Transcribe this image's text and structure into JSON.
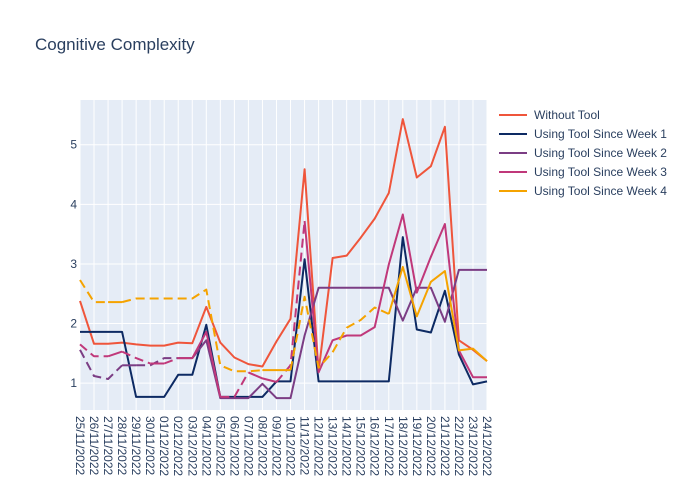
{
  "chart_data": {
    "type": "line",
    "title": "Cognitive Complexity",
    "xlabel": "",
    "ylabel": "",
    "ylim": [
      0.55,
      5.75
    ],
    "y_ticks": [
      1,
      2,
      3,
      4,
      5
    ],
    "grid": true,
    "legend_position": "right",
    "x": [
      "25/11/2022",
      "26/11/2022",
      "27/11/2022",
      "28/11/2022",
      "29/11/2022",
      "30/11/2022",
      "01/12/2022",
      "02/12/2022",
      "03/12/2022",
      "04/12/2022",
      "05/12/2022",
      "06/12/2022",
      "07/12/2022",
      "08/12/2022",
      "09/12/2022",
      "10/12/2022",
      "11/12/2022",
      "12/12/2022",
      "13/12/2022",
      "14/12/2022",
      "15/12/2022",
      "16/12/2022",
      "17/12/2022",
      "18/12/2022",
      "19/12/2022",
      "20/12/2022",
      "21/12/2022",
      "22/12/2022",
      "23/12/2022",
      "24/12/2022"
    ],
    "series": [
      {
        "name": "Without Tool",
        "color": "#ef553b",
        "values": [
          2.38,
          1.66,
          1.66,
          1.68,
          1.65,
          1.63,
          1.63,
          1.68,
          1.67,
          2.28,
          1.68,
          1.43,
          1.32,
          1.28,
          1.7,
          2.08,
          4.59,
          1.2,
          3.1,
          3.14,
          3.44,
          3.76,
          4.19,
          5.43,
          4.45,
          4.64,
          5.3,
          1.72,
          1.56,
          1.37
        ],
        "dash_segments": []
      },
      {
        "name": "Using Tool Since Week 1",
        "color": "#0d2a63",
        "values": [
          1.86,
          1.86,
          1.86,
          1.86,
          0.77,
          0.77,
          0.77,
          1.14,
          1.14,
          1.98,
          0.77,
          0.77,
          0.77,
          0.77,
          1.03,
          1.03,
          3.08,
          1.03,
          1.03,
          1.03,
          1.03,
          1.03,
          1.03,
          3.45,
          1.9,
          1.85,
          2.55,
          1.48,
          0.98,
          1.03
        ],
        "dash_segments": []
      },
      {
        "name": "Using Tool Since Week 2",
        "color": "#7b3d84",
        "values": [
          1.56,
          1.12,
          1.07,
          1.3,
          1.3,
          1.3,
          1.42,
          1.42,
          1.42,
          1.72,
          0.75,
          0.75,
          0.75,
          0.99,
          0.75,
          0.75,
          1.8,
          2.6,
          2.6,
          2.6,
          2.6,
          2.6,
          2.6,
          2.05,
          2.6,
          2.6,
          2.03,
          2.9,
          2.9,
          2.9
        ],
        "dash_segments": [
          [
            0,
            3
          ],
          [
            4,
            7
          ]
        ]
      },
      {
        "name": "Using Tool Since Week 3",
        "color": "#c0387a",
        "values": [
          1.65,
          1.45,
          1.45,
          1.53,
          1.42,
          1.33,
          1.33,
          1.42,
          1.42,
          1.86,
          0.77,
          0.77,
          1.18,
          1.08,
          1.02,
          1.3,
          3.72,
          1.18,
          1.72,
          1.8,
          1.8,
          1.94,
          2.99,
          3.83,
          2.52,
          3.12,
          3.67,
          1.55,
          1.1,
          1.1
        ],
        "dash_segments": [
          [
            0,
            2
          ],
          [
            3,
            5
          ],
          [
            6,
            7
          ],
          [
            10,
            12
          ],
          [
            14,
            16
          ]
        ]
      },
      {
        "name": "Using Tool Since Week 4",
        "color": "#f5a300",
        "values": [
          2.73,
          2.36,
          2.36,
          2.36,
          2.42,
          2.42,
          2.42,
          2.42,
          2.42,
          2.57,
          1.3,
          1.2,
          1.2,
          1.22,
          1.22,
          1.22,
          2.45,
          1.26,
          1.52,
          1.93,
          2.06,
          2.27,
          2.16,
          2.95,
          2.12,
          2.7,
          2.88,
          1.55,
          1.58,
          1.37
        ],
        "dash_segments": [
          [
            0,
            2
          ],
          [
            3,
            9
          ],
          [
            9,
            13
          ],
          [
            15,
            17
          ],
          [
            17,
            22
          ]
        ]
      }
    ]
  }
}
